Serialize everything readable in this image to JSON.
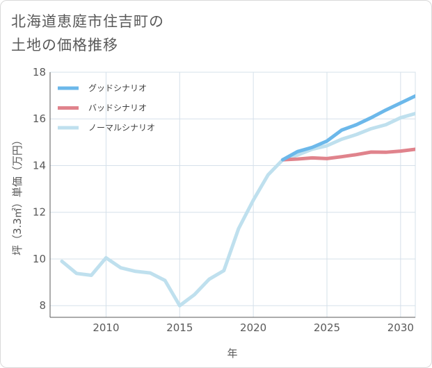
{
  "title": {
    "line1": "北海道恵庭市住吉町の",
    "line2": "土地の価格推移"
  },
  "colors": {
    "good": "#6cb8ea",
    "bad": "#e0838c",
    "normal": "#bfe0ee",
    "grid": "#d5e0ea",
    "axis": "#595959"
  },
  "chart_data": {
    "type": "line",
    "xlabel": "年",
    "ylabel": "坪（3.3㎡）単価（万円）",
    "xlim": [
      2006.2,
      2031
    ],
    "ylim": [
      7.5,
      18
    ],
    "x_ticks": [
      "2010",
      "2015",
      "2020",
      "2025",
      "2030"
    ],
    "y_ticks": [
      "8",
      "10",
      "12",
      "14",
      "16",
      "18"
    ],
    "grid": true,
    "legend_position": "top-left",
    "series": [
      {
        "name": "グッドシナリオ",
        "color": "#6cb8ea",
        "x": [
          2022,
          2023,
          2024,
          2025,
          2026,
          2027,
          2028,
          2029,
          2030,
          2031
        ],
        "y": [
          14.25,
          14.6,
          14.78,
          15.05,
          15.52,
          15.75,
          16.05,
          16.38,
          16.68,
          16.98
        ]
      },
      {
        "name": "バッドシナリオ",
        "color": "#e0838c",
        "x": [
          2022,
          2023,
          2024,
          2025,
          2026,
          2027,
          2028,
          2029,
          2030,
          2031
        ],
        "y": [
          14.25,
          14.28,
          14.33,
          14.3,
          14.38,
          14.47,
          14.58,
          14.57,
          14.62,
          14.7
        ]
      },
      {
        "name": "ノーマルシナリオ",
        "color": "#bfe0ee",
        "x": [
          2007,
          2008,
          2009,
          2010,
          2011,
          2012,
          2013,
          2014,
          2015,
          2016,
          2017,
          2018,
          2019,
          2020,
          2021,
          2022,
          2023,
          2024,
          2025,
          2026,
          2027,
          2028,
          2029,
          2030,
          2031
        ],
        "y": [
          9.9,
          9.38,
          9.3,
          10.05,
          9.62,
          9.47,
          9.4,
          9.08,
          8.0,
          8.47,
          9.13,
          9.5,
          11.3,
          12.52,
          13.6,
          14.25,
          14.45,
          14.7,
          14.85,
          15.13,
          15.33,
          15.58,
          15.75,
          16.05,
          16.23
        ]
      }
    ]
  }
}
